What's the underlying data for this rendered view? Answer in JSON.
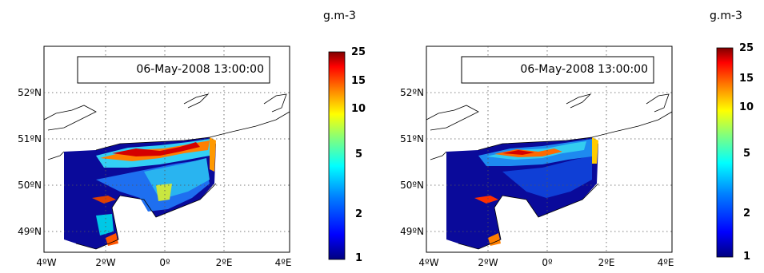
{
  "figure": {
    "panels": [
      {
        "unit_label": "g.m-3",
        "timestamp": "06-May-2008 13:00:00",
        "lat_ticks": [
          "52ºN",
          "51ºN",
          "50ºN",
          "49ºN"
        ],
        "lon_ticks": [
          "4ºW",
          "2ºW",
          "0º",
          "2ºE",
          "4ºE"
        ],
        "colorbar_ticks": [
          "25",
          "15",
          "10",
          "5",
          "2",
          "1"
        ]
      },
      {
        "unit_label": "g.m-3",
        "timestamp": "06-May-2008 13:00:00",
        "lat_ticks": [
          "52ºN",
          "51ºN",
          "50ºN",
          "49ºN"
        ],
        "lon_ticks": [
          "4ºW",
          "2ºW",
          "0º",
          "2ºE",
          "4ºE"
        ],
        "colorbar_ticks": [
          "25",
          "15",
          "10",
          "5",
          "2",
          "1"
        ]
      }
    ],
    "colormap": [
      "#00007f",
      "#0000ff",
      "#007fff",
      "#00ffff",
      "#7fff7f",
      "#ffff00",
      "#ff7f00",
      "#ff0000",
      "#7f0000"
    ]
  }
}
